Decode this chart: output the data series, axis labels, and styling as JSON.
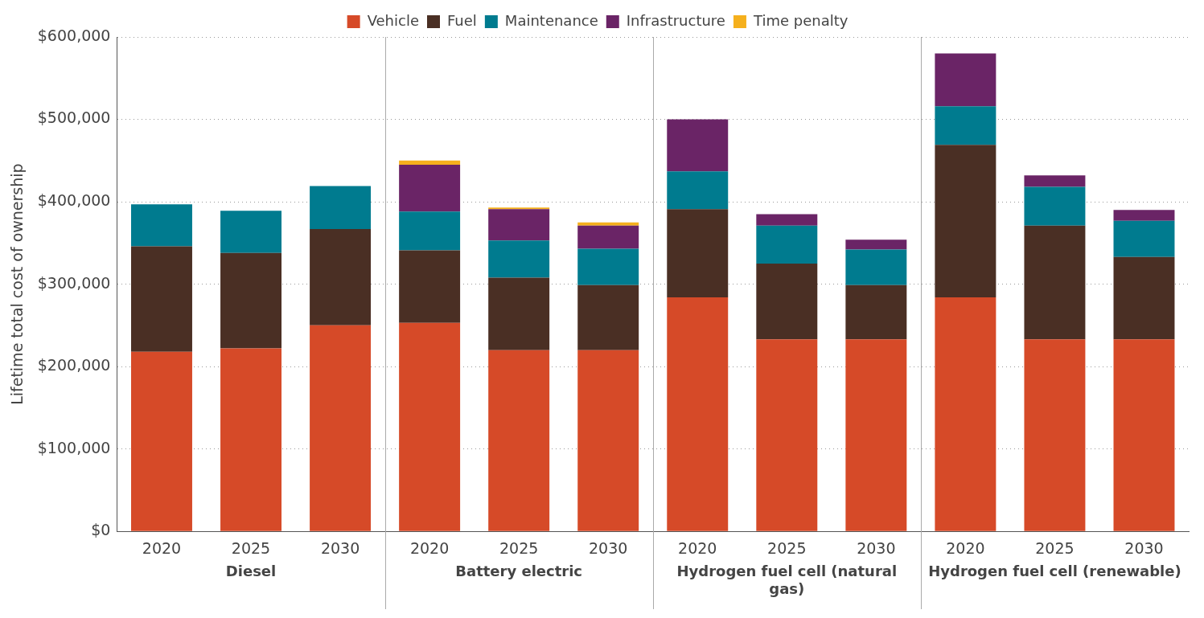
{
  "chart_data": {
    "type": "bar",
    "stacked": true,
    "ylabel": "Lifetime total cost of ownership",
    "categories": [
      "2020",
      "2025",
      "2030",
      "2020",
      "2025",
      "2030",
      "2020",
      "2025",
      "2030",
      "2020",
      "2025",
      "2030"
    ],
    "series": [
      {
        "name": "Vehicle",
        "color": "#d64a28",
        "values": [
          218000,
          222000,
          250000,
          253000,
          220000,
          220000,
          284000,
          233000,
          233000,
          284000,
          233000,
          233000
        ]
      },
      {
        "name": "Fuel",
        "color": "#4a2f24",
        "values": [
          128000,
          116000,
          117000,
          88000,
          88000,
          79000,
          107000,
          92000,
          66000,
          185000,
          138000,
          100000
        ]
      },
      {
        "name": "Maintenance",
        "color": "#007b8f",
        "values": [
          51000,
          51000,
          52000,
          47000,
          45000,
          44000,
          46000,
          46000,
          43000,
          47000,
          47000,
          44000
        ]
      },
      {
        "name": "Infrastructure",
        "color": "#6a2466",
        "values": [
          null,
          null,
          null,
          57000,
          38000,
          28000,
          63000,
          14000,
          12000,
          64000,
          14000,
          13000
        ]
      },
      {
        "name": "Time penalty",
        "color": "#f5b01d",
        "values": [
          null,
          null,
          null,
          5000,
          2000,
          4000,
          null,
          null,
          null,
          null,
          null,
          null
        ]
      }
    ],
    "annotations": [
      "Diesel",
      "Battery electric",
      "Hydrogen fuel cell (natural gas)",
      "Hydrogen fuel cell (renewable)"
    ],
    "ylim": [
      0,
      600000
    ],
    "yticks": [
      {
        "value": 0,
        "label": "$0"
      },
      {
        "value": 100000,
        "label": "$100,000"
      },
      {
        "value": 200000,
        "label": "$200,000"
      },
      {
        "value": 300000,
        "label": "$300,000"
      },
      {
        "value": 400000,
        "label": "$400,000"
      },
      {
        "value": 500000,
        "label": "$500,000"
      },
      {
        "value": 600000,
        "label": "$600,000"
      }
    ],
    "grid": "y",
    "legend": "top"
  }
}
